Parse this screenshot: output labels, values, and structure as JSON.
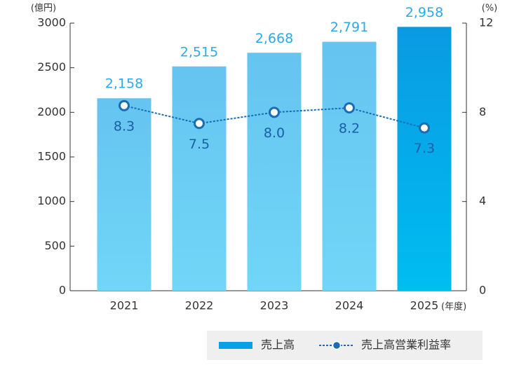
{
  "chart_data": {
    "type": "bar-line",
    "y_unit_label": "(億円)",
    "y2_unit_label": "(%)",
    "x_unit_label": "(年度)",
    "categories": [
      "2021",
      "2022",
      "2023",
      "2024",
      "2025"
    ],
    "series": [
      {
        "name": "売上高",
        "type": "bar",
        "color": "#0aa0e6",
        "colors": [
          "#66c9f2",
          "#66c9f2",
          "#66c9f2",
          "#66c9f2",
          "#0aa0e6"
        ],
        "label_color": "#2aaae8",
        "values": [
          2158,
          2515,
          2668,
          2791,
          2958
        ],
        "value_labels": [
          "2,158",
          "2,515",
          "2,668",
          "2,791",
          "2,958"
        ]
      },
      {
        "name": "売上高営業利益率",
        "type": "line",
        "axis": "y2",
        "color": "#1a6db5",
        "label_color": "#1a5fa8",
        "values": [
          8.3,
          7.5,
          8.0,
          8.2,
          7.3
        ],
        "value_labels": [
          "8.3",
          "7.5",
          "8.0",
          "8.2",
          "7.3"
        ]
      }
    ],
    "ylim": [
      0,
      3000
    ],
    "yticks": [
      0,
      500,
      1000,
      1500,
      2000,
      2500,
      3000
    ],
    "y2lim": [
      0,
      12
    ],
    "y2ticks": [
      0,
      4,
      8,
      12
    ]
  }
}
